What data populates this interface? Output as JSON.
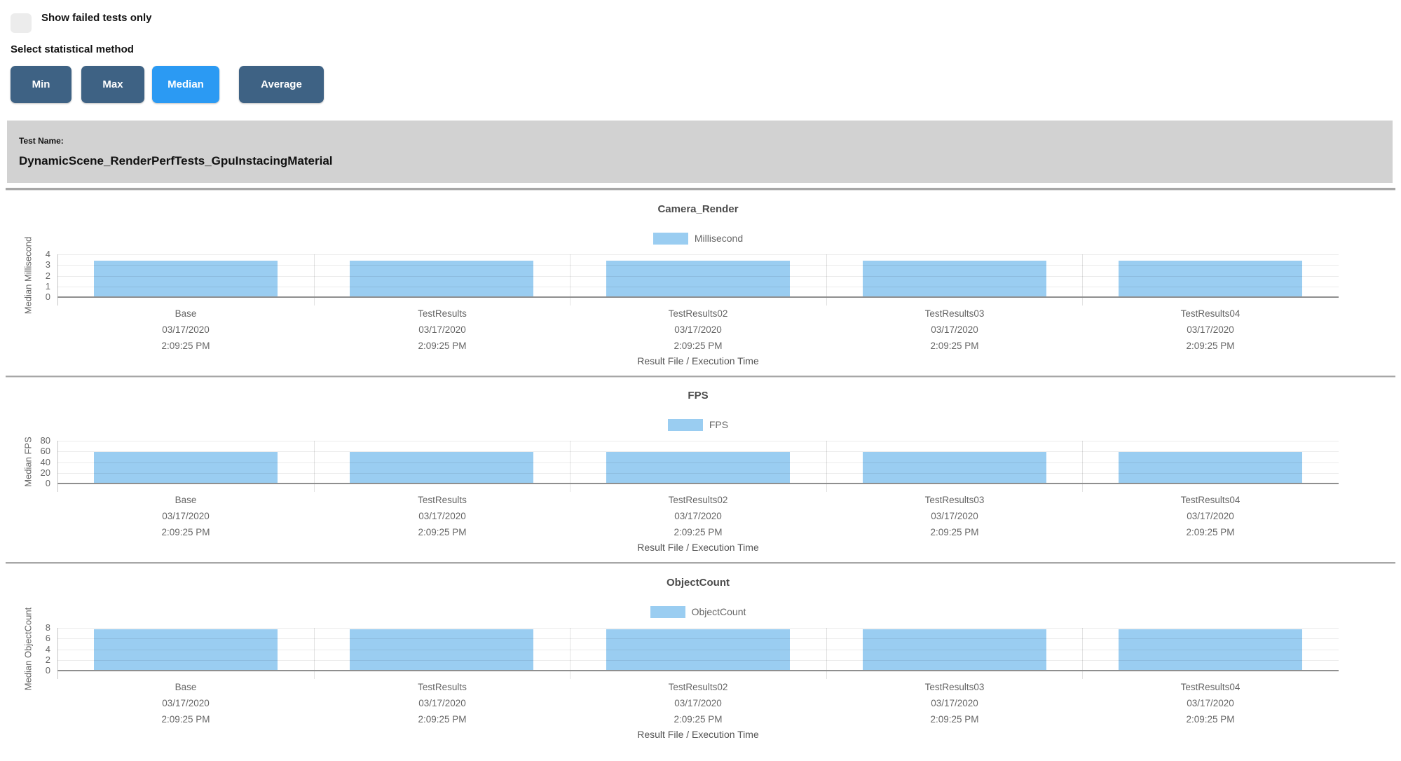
{
  "controls": {
    "show_failed_label": "Show failed tests only",
    "show_failed_checked": false,
    "stat_method_label": "Select statistical method",
    "buttons": [
      {
        "label": "Min",
        "active": false
      },
      {
        "label": "Max",
        "active": false
      },
      {
        "label": "Median",
        "active": true
      },
      {
        "label": "Average",
        "active": false
      }
    ]
  },
  "test_header": {
    "label": "Test Name:",
    "name": "DynamicScene_RenderPerfTests_GpuInstacingMaterial"
  },
  "colors": {
    "bar": "#9acdf1",
    "button_inactive": "#3e6284",
    "button_active": "#2b9af3",
    "header_bg": "#d2d2d2",
    "divider": "#a7a7a7"
  },
  "chart_data": [
    {
      "type": "bar",
      "title": "Camera_Render",
      "legend": "Millisecond",
      "ylabel": "Median Millisecond",
      "xlabel": "Result File / Execution Time",
      "ylim": [
        0,
        4
      ],
      "yticks": [
        0,
        1,
        2,
        3,
        4
      ],
      "grid": true,
      "legend_position": "top",
      "categories": [
        {
          "name": "Base",
          "date": "03/17/2020",
          "time": "2:09:25 PM"
        },
        {
          "name": "TestResults",
          "date": "03/17/2020",
          "time": "2:09:25 PM"
        },
        {
          "name": "TestResults02",
          "date": "03/17/2020",
          "time": "2:09:25 PM"
        },
        {
          "name": "TestResults03",
          "date": "03/17/2020",
          "time": "2:09:25 PM"
        },
        {
          "name": "TestResults04",
          "date": "03/17/2020",
          "time": "2:09:25 PM"
        }
      ],
      "values": [
        3.4,
        3.4,
        3.4,
        3.4,
        3.4
      ]
    },
    {
      "type": "bar",
      "title": "FPS",
      "legend": "FPS",
      "ylabel": "Median FPS",
      "xlabel": "Result File / Execution Time",
      "ylim": [
        0,
        80
      ],
      "yticks": [
        0,
        20,
        40,
        60,
        80
      ],
      "grid": true,
      "legend_position": "top",
      "categories": [
        {
          "name": "Base",
          "date": "03/17/2020",
          "time": "2:09:25 PM"
        },
        {
          "name": "TestResults",
          "date": "03/17/2020",
          "time": "2:09:25 PM"
        },
        {
          "name": "TestResults02",
          "date": "03/17/2020",
          "time": "2:09:25 PM"
        },
        {
          "name": "TestResults03",
          "date": "03/17/2020",
          "time": "2:09:25 PM"
        },
        {
          "name": "TestResults04",
          "date": "03/17/2020",
          "time": "2:09:25 PM"
        }
      ],
      "values": [
        58.7,
        58.7,
        58.7,
        58.7,
        58.7
      ]
    },
    {
      "type": "bar",
      "title": "ObjectCount",
      "legend": "ObjectCount",
      "ylabel": "Median ObjectCount",
      "xlabel": "Result File / Execution Time",
      "ylim": [
        0,
        8
      ],
      "yticks": [
        0,
        2,
        4,
        6,
        8
      ],
      "grid": true,
      "legend_position": "top",
      "categories": [
        {
          "name": "Base",
          "date": "03/17/2020",
          "time": "2:09:25 PM"
        },
        {
          "name": "TestResults",
          "date": "03/17/2020",
          "time": "2:09:25 PM"
        },
        {
          "name": "TestResults02",
          "date": "03/17/2020",
          "time": "2:09:25 PM"
        },
        {
          "name": "TestResults03",
          "date": "03/17/2020",
          "time": "2:09:25 PM"
        },
        {
          "name": "TestResults04",
          "date": "03/17/2020",
          "time": "2:09:25 PM"
        }
      ],
      "values": [
        7.8,
        7.8,
        7.8,
        7.8,
        7.8
      ]
    }
  ]
}
